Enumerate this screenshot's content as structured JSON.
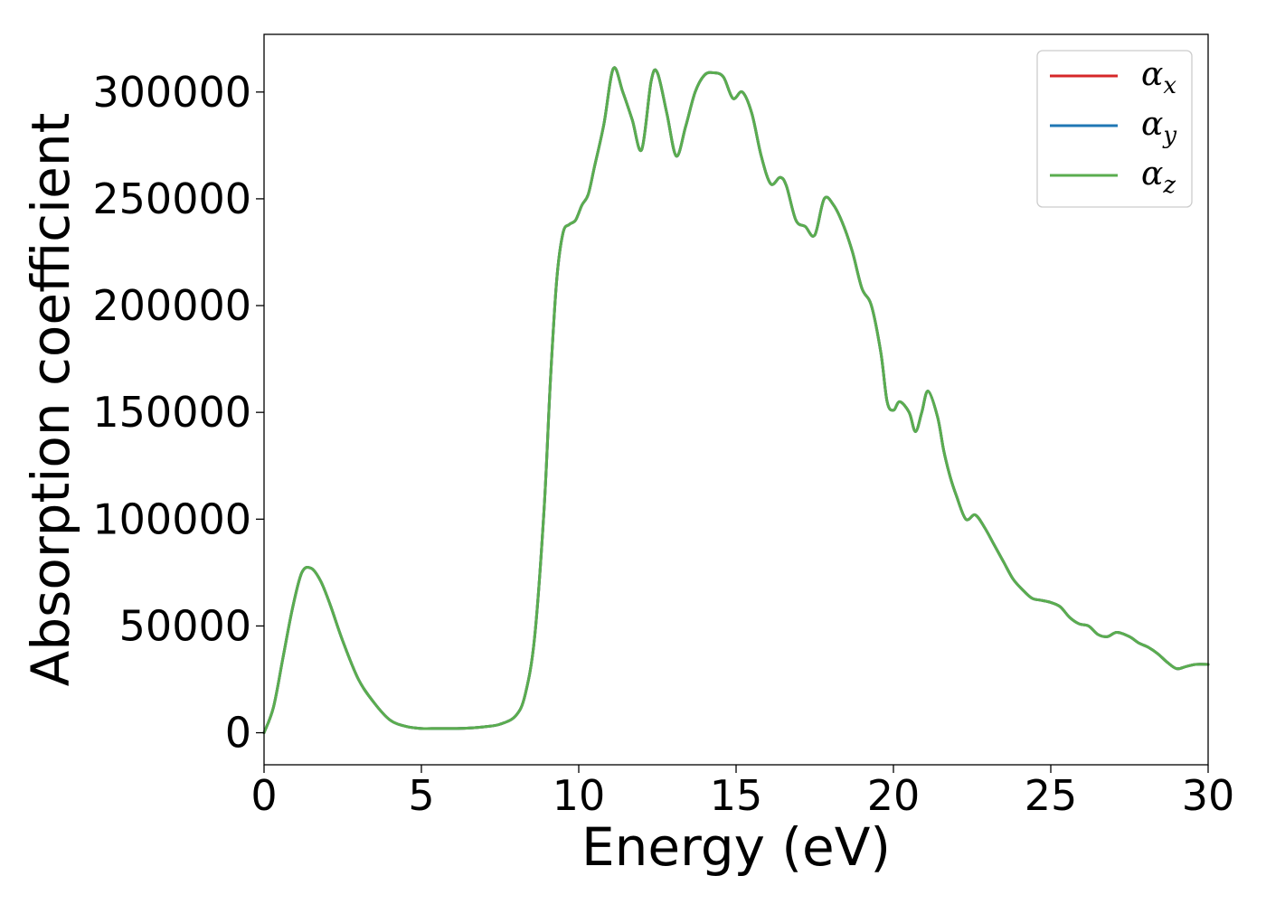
{
  "chart_data": {
    "type": "line",
    "xlabel": "Energy (eV)",
    "ylabel": "Absorption coefficient",
    "xlim": [
      0,
      30
    ],
    "ylim": [
      -15000,
      327000
    ],
    "xticks": [
      0,
      5,
      10,
      15,
      20,
      25,
      30
    ],
    "yticks": [
      0,
      50000,
      100000,
      150000,
      200000,
      250000,
      300000
    ],
    "xtick_labels": [
      "0",
      "5",
      "10",
      "15",
      "20",
      "25",
      "30"
    ],
    "ytick_labels": [
      "0",
      "50000",
      "100000",
      "150000",
      "200000",
      "250000",
      "300000"
    ],
    "grid": false,
    "legend_position": "top-right",
    "x": [
      0,
      0.3,
      0.6,
      0.9,
      1.2,
      1.5,
      1.8,
      2.1,
      2.5,
      3.0,
      3.5,
      4.0,
      4.5,
      5.0,
      5.5,
      6.0,
      6.5,
      7.0,
      7.5,
      8.0,
      8.3,
      8.6,
      8.9,
      9.1,
      9.3,
      9.5,
      9.7,
      9.9,
      10.1,
      10.3,
      10.5,
      10.8,
      11.1,
      11.4,
      11.7,
      12.0,
      12.3,
      12.5,
      12.8,
      13.1,
      13.4,
      13.7,
      14.0,
      14.3,
      14.6,
      14.9,
      15.2,
      15.5,
      15.8,
      16.1,
      16.4,
      16.6,
      16.9,
      17.2,
      17.5,
      17.8,
      18.1,
      18.4,
      18.7,
      19.0,
      19.3,
      19.6,
      19.8,
      20.0,
      20.2,
      20.5,
      20.7,
      20.9,
      21.1,
      21.4,
      21.6,
      21.8,
      22.0,
      22.3,
      22.6,
      22.9,
      23.2,
      23.5,
      23.8,
      24.1,
      24.4,
      24.7,
      25.0,
      25.3,
      25.6,
      25.9,
      26.2,
      26.5,
      26.8,
      27.1,
      27.5,
      27.8,
      28.1,
      28.4,
      28.7,
      29.0,
      29.3,
      29.6,
      30.0
    ],
    "series": [
      {
        "name": "α_x",
        "color": "#d62728",
        "values": [
          0,
          12000,
          35000,
          58000,
          75000,
          77000,
          71000,
          60000,
          43000,
          25000,
          14000,
          6000,
          3000,
          2000,
          2000,
          2000,
          2200,
          2800,
          4000,
          8000,
          18000,
          45000,
          105000,
          165000,
          212000,
          234000,
          238000,
          240000,
          247000,
          252000,
          265000,
          285000,
          311000,
          300000,
          287000,
          273000,
          305000,
          309000,
          290000,
          270000,
          284000,
          300000,
          308000,
          309000,
          307000,
          297000,
          300000,
          290000,
          270000,
          257000,
          260000,
          256000,
          240000,
          237000,
          233000,
          250000,
          247000,
          238000,
          225000,
          208000,
          200000,
          178000,
          155000,
          151000,
          155000,
          150000,
          141000,
          150000,
          160000,
          148000,
          132000,
          120000,
          111000,
          100000,
          102000,
          96000,
          88000,
          80000,
          72000,
          67000,
          63000,
          62000,
          61000,
          59000,
          54000,
          51000,
          50000,
          46000,
          45000,
          47000,
          45000,
          42000,
          40000,
          37000,
          33000,
          30000,
          31000,
          32000,
          32000
        ]
      },
      {
        "name": "α_y",
        "color": "#1f77b4",
        "values": [
          0,
          12000,
          35000,
          58000,
          75000,
          77000,
          71000,
          60000,
          43000,
          25000,
          14000,
          6000,
          3000,
          2000,
          2000,
          2000,
          2200,
          2800,
          4000,
          8000,
          18000,
          45000,
          105000,
          165000,
          212000,
          234000,
          238000,
          240000,
          247000,
          252000,
          265000,
          285000,
          311000,
          300000,
          287000,
          273000,
          305000,
          309000,
          290000,
          270000,
          284000,
          300000,
          308000,
          309000,
          307000,
          297000,
          300000,
          290000,
          270000,
          257000,
          260000,
          256000,
          240000,
          237000,
          233000,
          250000,
          247000,
          238000,
          225000,
          208000,
          200000,
          178000,
          155000,
          151000,
          155000,
          150000,
          141000,
          150000,
          160000,
          148000,
          132000,
          120000,
          111000,
          100000,
          102000,
          96000,
          88000,
          80000,
          72000,
          67000,
          63000,
          62000,
          61000,
          59000,
          54000,
          51000,
          50000,
          46000,
          45000,
          47000,
          45000,
          42000,
          40000,
          37000,
          33000,
          30000,
          31000,
          32000,
          32000
        ]
      },
      {
        "name": "α_z",
        "color": "#5aad4f",
        "values": [
          0,
          12000,
          35000,
          58000,
          75000,
          77000,
          71000,
          60000,
          43000,
          25000,
          14000,
          6000,
          3000,
          2000,
          2000,
          2000,
          2200,
          2800,
          4000,
          8000,
          18000,
          45000,
          105000,
          165000,
          212000,
          234000,
          238000,
          240000,
          247000,
          252000,
          265000,
          285000,
          311000,
          300000,
          287000,
          273000,
          305000,
          309000,
          290000,
          270000,
          284000,
          300000,
          308000,
          309000,
          307000,
          297000,
          300000,
          290000,
          270000,
          257000,
          260000,
          256000,
          240000,
          237000,
          233000,
          250000,
          247000,
          238000,
          225000,
          208000,
          200000,
          178000,
          155000,
          151000,
          155000,
          150000,
          141000,
          150000,
          160000,
          148000,
          132000,
          120000,
          111000,
          100000,
          102000,
          96000,
          88000,
          80000,
          72000,
          67000,
          63000,
          62000,
          61000,
          59000,
          54000,
          51000,
          50000,
          46000,
          45000,
          47000,
          45000,
          42000,
          40000,
          37000,
          33000,
          30000,
          31000,
          32000,
          32000
        ]
      }
    ],
    "legend": [
      {
        "symbol": "α",
        "sub": "x"
      },
      {
        "symbol": "α",
        "sub": "y"
      },
      {
        "symbol": "α",
        "sub": "z"
      }
    ]
  }
}
